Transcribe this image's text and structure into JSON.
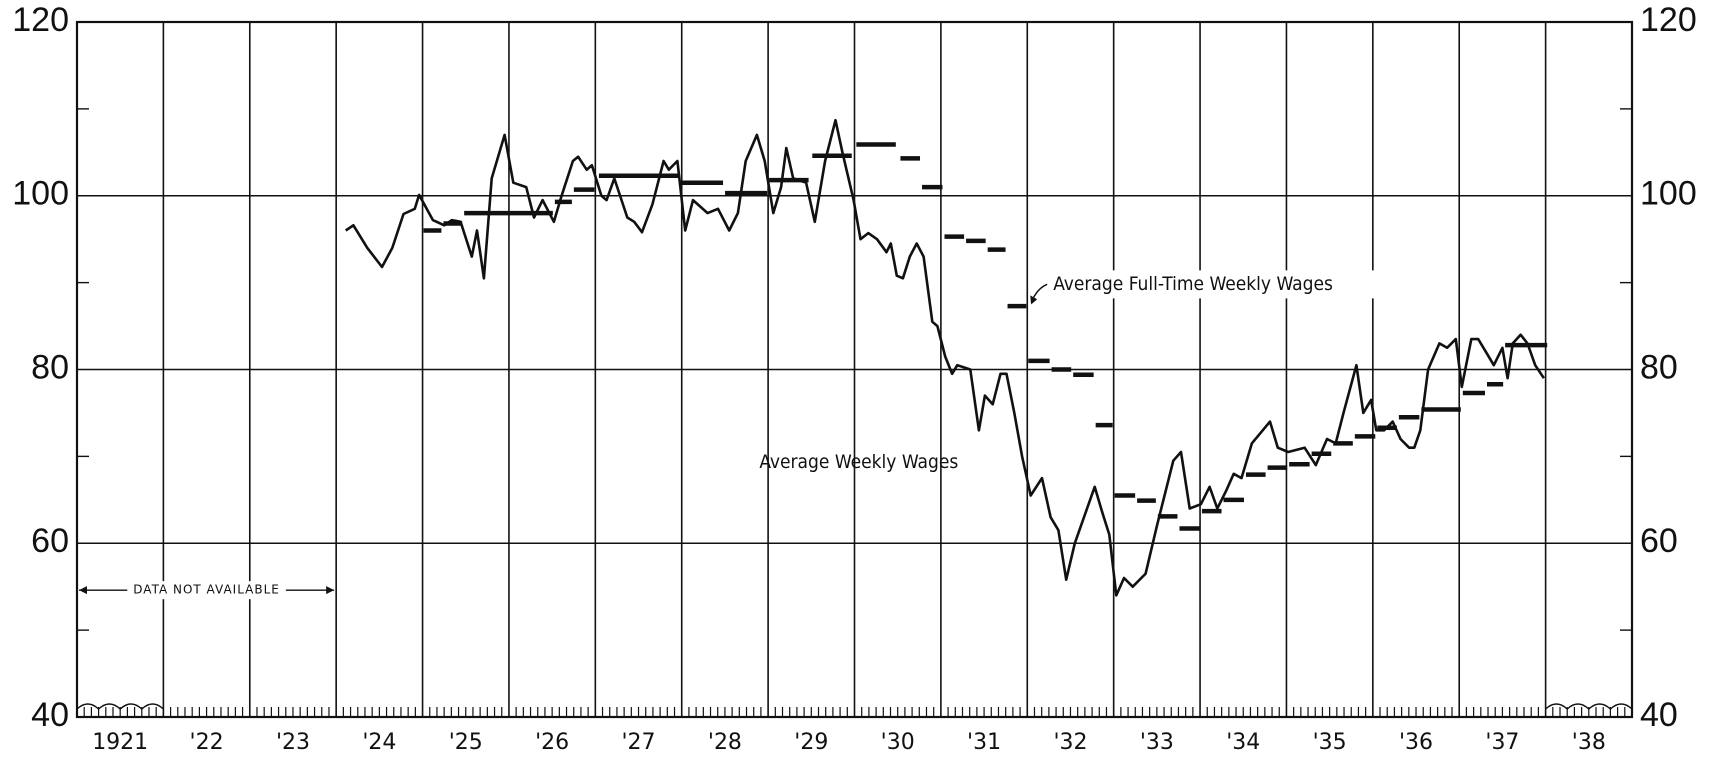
{
  "chart_data": {
    "type": "line",
    "xlim": [
      1921,
      1939
    ],
    "xticks": [
      {
        "value": 1921,
        "label": "1921"
      },
      {
        "value": 1922,
        "label": "'22"
      },
      {
        "value": 1923,
        "label": "'23"
      },
      {
        "value": 1924,
        "label": "'24"
      },
      {
        "value": 1925,
        "label": "'25"
      },
      {
        "value": 1926,
        "label": "'26"
      },
      {
        "value": 1927,
        "label": "'27"
      },
      {
        "value": 1928,
        "label": "'28"
      },
      {
        "value": 1929,
        "label": "'29"
      },
      {
        "value": 1930,
        "label": "'30"
      },
      {
        "value": 1931,
        "label": "'31"
      },
      {
        "value": 1932,
        "label": "'32"
      },
      {
        "value": 1933,
        "label": "'33"
      },
      {
        "value": 1934,
        "label": "'34"
      },
      {
        "value": 1935,
        "label": "'35"
      },
      {
        "value": 1936,
        "label": "'36"
      },
      {
        "value": 1937,
        "label": "'37"
      },
      {
        "value": 1938,
        "label": "'38"
      }
    ],
    "ylim": [
      40,
      120
    ],
    "yticks": [
      40,
      60,
      80,
      100,
      120
    ],
    "yminorticks": [
      50,
      70,
      90,
      110
    ],
    "y2lim": [
      40,
      120
    ],
    "y2ticks": [
      40,
      60,
      80,
      100,
      120
    ],
    "grid": true,
    "annotations": [
      {
        "text": "DATA NOT AVAILABLE",
        "x": [
          1921,
          1924
        ],
        "y": 54.6
      }
    ],
    "series": [
      {
        "name": "Average Weekly Wages",
        "color": "#111111",
        "style": "line",
        "x": [
          1924.11,
          1924.2,
          1924.36,
          1924.53,
          1924.65,
          1924.78,
          1924.91,
          1924.96,
          1925.02,
          1925.12,
          1925.25,
          1925.34,
          1925.44,
          1925.57,
          1925.63,
          1925.71,
          1925.8,
          1925.95,
          1926.05,
          1926.2,
          1926.29,
          1926.39,
          1926.52,
          1926.61,
          1926.74,
          1926.8,
          1926.9,
          1926.96,
          1927.07,
          1927.13,
          1927.22,
          1927.37,
          1927.45,
          1927.54,
          1927.66,
          1927.79,
          1927.85,
          1927.95,
          1928.04,
          1928.13,
          1928.3,
          1928.42,
          1928.55,
          1928.65,
          1928.74,
          1928.87,
          1928.96,
          1929.06,
          1929.15,
          1929.21,
          1929.29,
          1929.44,
          1929.54,
          1929.66,
          1929.78,
          1929.86,
          1929.99,
          1930.07,
          1930.16,
          1930.26,
          1930.37,
          1930.42,
          1930.49,
          1930.56,
          1930.64,
          1930.72,
          1930.8,
          1930.9,
          1930.96,
          1931.05,
          1931.13,
          1931.19,
          1931.34,
          1931.44,
          1931.51,
          1931.6,
          1931.69,
          1931.76,
          1931.85,
          1931.94,
          1932.04,
          1932.17,
          1932.27,
          1932.36,
          1932.45,
          1932.55,
          1932.78,
          1932.87,
          1932.95,
          1933.03,
          1933.12,
          1933.22,
          1933.37,
          1933.5,
          1933.69,
          1933.78,
          1933.88,
          1934.01,
          1934.11,
          1934.2,
          1934.3,
          1934.39,
          1934.48,
          1934.6,
          1934.81,
          1934.9,
          1935.02,
          1935.21,
          1935.34,
          1935.47,
          1935.57,
          1935.66,
          1935.81,
          1935.89,
          1935.98,
          1936.04,
          1936.13,
          1936.23,
          1936.32,
          1936.42,
          1936.48,
          1936.55,
          1936.64,
          1936.77,
          1936.86,
          1936.96,
          1937.03,
          1937.14,
          1937.22,
          1937.31,
          1937.4,
          1937.5,
          1937.56,
          1937.62,
          1937.71,
          1937.79,
          1937.88,
          1937.98
        ],
        "values": [
          96,
          96.6,
          94,
          91.8,
          94,
          97.9,
          98.5,
          100.1,
          99,
          97.2,
          96.6,
          97.2,
          97,
          93,
          96,
          90.5,
          102,
          107,
          101.5,
          101,
          97.5,
          99.5,
          97,
          100,
          104,
          104.5,
          103,
          103.5,
          100,
          99.5,
          102,
          97.5,
          97,
          95.8,
          99,
          104,
          103,
          104,
          96,
          99.5,
          98,
          98.5,
          96,
          98,
          104,
          107,
          104,
          98,
          101,
          105.5,
          102,
          101.5,
          97,
          104,
          108.7,
          105,
          99.5,
          95,
          95.7,
          95,
          93.5,
          94.5,
          90.8,
          90.5,
          93,
          94.5,
          93,
          85.5,
          85,
          81.5,
          79.5,
          80.5,
          80,
          73,
          77,
          76,
          79.5,
          79.5,
          75,
          70,
          65.5,
          67.5,
          63,
          61.5,
          55.8,
          60,
          66.5,
          63.5,
          61,
          54,
          56,
          55,
          56.5,
          62,
          69.5,
          70.5,
          64,
          64.5,
          66.5,
          64,
          66,
          68,
          67.5,
          71.5,
          74,
          71,
          70.5,
          71,
          69,
          72,
          71.5,
          75,
          80.5,
          75,
          76.5,
          73,
          73,
          74,
          72,
          71,
          71,
          73,
          80,
          83,
          82.5,
          83.5,
          78,
          83.5,
          83.5,
          82,
          80.5,
          82.5,
          79,
          83,
          84,
          83,
          80.5,
          79
        ]
      },
      {
        "name": "Average Full-Time Weekly Wages",
        "color": "#111111",
        "style": "steps",
        "x": [
          [
            1925.0,
            1925.23
          ],
          [
            1925.23,
            1925.47
          ],
          [
            1925.47,
            1926.52
          ],
          [
            1926.52,
            1926.74
          ],
          [
            1926.74,
            1927.0
          ],
          [
            1927.03,
            1927.98
          ],
          [
            1927.98,
            1928.49
          ],
          [
            1928.49,
            1929.0
          ],
          [
            1929.0,
            1929.48
          ],
          [
            1929.5,
            1929.98
          ],
          [
            1930.01,
            1930.49
          ],
          [
            1930.52,
            1930.77
          ],
          [
            1930.77,
            1931.03
          ],
          [
            1931.03,
            1931.28
          ],
          [
            1931.28,
            1931.53
          ],
          [
            1931.53,
            1931.76
          ],
          [
            1931.76,
            1932.0
          ],
          [
            1932.0,
            1932.27
          ],
          [
            1932.27,
            1932.52
          ],
          [
            1932.52,
            1932.78
          ],
          [
            1932.78,
            1933.0
          ],
          [
            1933.0,
            1933.26
          ],
          [
            1933.26,
            1933.5
          ],
          [
            1933.5,
            1933.75
          ],
          [
            1933.75,
            1934.01
          ],
          [
            1934.01,
            1934.26
          ],
          [
            1934.26,
            1934.52
          ],
          [
            1934.52,
            1934.77
          ],
          [
            1934.77,
            1935.02
          ],
          [
            1935.02,
            1935.28
          ],
          [
            1935.28,
            1935.53
          ],
          [
            1935.53,
            1935.78
          ],
          [
            1935.78,
            1936.04
          ],
          [
            1936.04,
            1936.29
          ],
          [
            1936.29,
            1936.55
          ],
          [
            1936.55,
            1937.03
          ],
          [
            1937.03,
            1937.31
          ],
          [
            1937.31,
            1937.52
          ],
          [
            1937.52,
            1938.03
          ]
        ],
        "values": [
          96,
          96.8,
          98,
          99.3,
          100.7,
          102.3,
          101.5,
          100.3,
          101.8,
          104.6,
          105.9,
          104.3,
          101,
          95.3,
          94.8,
          93.8,
          87.3,
          81,
          80,
          79.4,
          73.6,
          65.5,
          64.9,
          63.1,
          61.7,
          63.7,
          65,
          67.9,
          68.7,
          69.1,
          70.3,
          71.5,
          72.3,
          73.3,
          74.5,
          75.4,
          77.3,
          78.3,
          82.8
        ]
      }
    ]
  }
}
